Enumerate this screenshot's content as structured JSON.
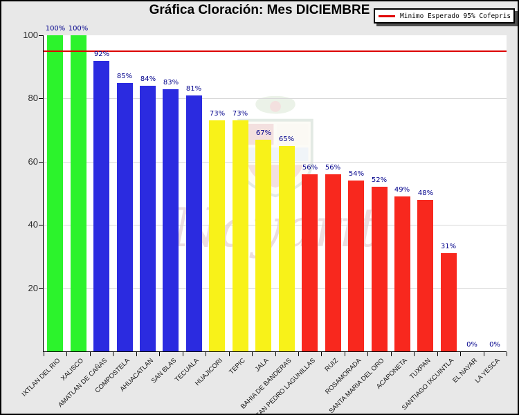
{
  "window": {
    "title": "Gráfica Cloración: Mes DICIEMBRE"
  },
  "legend": {
    "label": "Minimo Esperado 95% Cofepris",
    "line_color": "#e00000"
  },
  "watermark": {
    "text": "Nayarit"
  },
  "colors": {
    "background": "#e8e8e8",
    "plot_background": "#ffffff",
    "gridline": "#d8d8d8",
    "axis": "#000000",
    "value_label": "#00008b",
    "threshold_line": "#dd0000",
    "bar_green": "#2cf32c",
    "bar_blue": "#2b2be0",
    "bar_yellow": "#f8f219",
    "bar_red": "#f8281e"
  },
  "chart_data": {
    "type": "bar",
    "title": "Gráfica Cloración: Mes DICIEMBRE",
    "xlabel": "",
    "ylabel": "",
    "ylim": [
      0,
      100
    ],
    "yticks": [
      20,
      40,
      60,
      80,
      100
    ],
    "grid": true,
    "legend_position": "top-right",
    "categories": [
      "IXTLAN DEL RIO",
      "XALISCO",
      "AMATLAN DE CAÑAS",
      "COMPOSTELA",
      "AHUACATLAN",
      "SAN BLAS",
      "TECUALA",
      "HUAJICORI",
      "TEPIC",
      "JALA",
      "BAHIA DE BANDERAS",
      "SAN PEDRO LAGUNILLAS",
      "RUIZ",
      "ROSAMORADA",
      "SANTA MARIA DEL ORO",
      "ACAPONETA",
      "TUXPAN",
      "SANTIAGO IXCUINTLA",
      "EL NAYAR",
      "LA YESCA"
    ],
    "values": [
      100,
      100,
      92,
      85,
      84,
      83,
      81,
      73,
      73,
      67,
      65,
      56,
      56,
      54,
      52,
      49,
      48,
      31,
      0,
      0
    ],
    "value_labels": [
      "100%",
      "100%",
      "92%",
      "85%",
      "84%",
      "83%",
      "81%",
      "73%",
      "73%",
      "67%",
      "65%",
      "56%",
      "56%",
      "54%",
      "52%",
      "49%",
      "48%",
      "31%",
      "0%",
      "0%"
    ],
    "bar_colors": [
      "#2cf32c",
      "#2cf32c",
      "#2b2be0",
      "#2b2be0",
      "#2b2be0",
      "#2b2be0",
      "#2b2be0",
      "#f8f219",
      "#f8f219",
      "#f8f219",
      "#f8f219",
      "#f8281e",
      "#f8281e",
      "#f8281e",
      "#f8281e",
      "#f8281e",
      "#f8281e",
      "#f8281e",
      "#f8281e",
      "#f8281e"
    ],
    "threshold": {
      "value": 95,
      "label": "Minimo Esperado 95% Cofepris",
      "color": "#dd0000"
    }
  }
}
